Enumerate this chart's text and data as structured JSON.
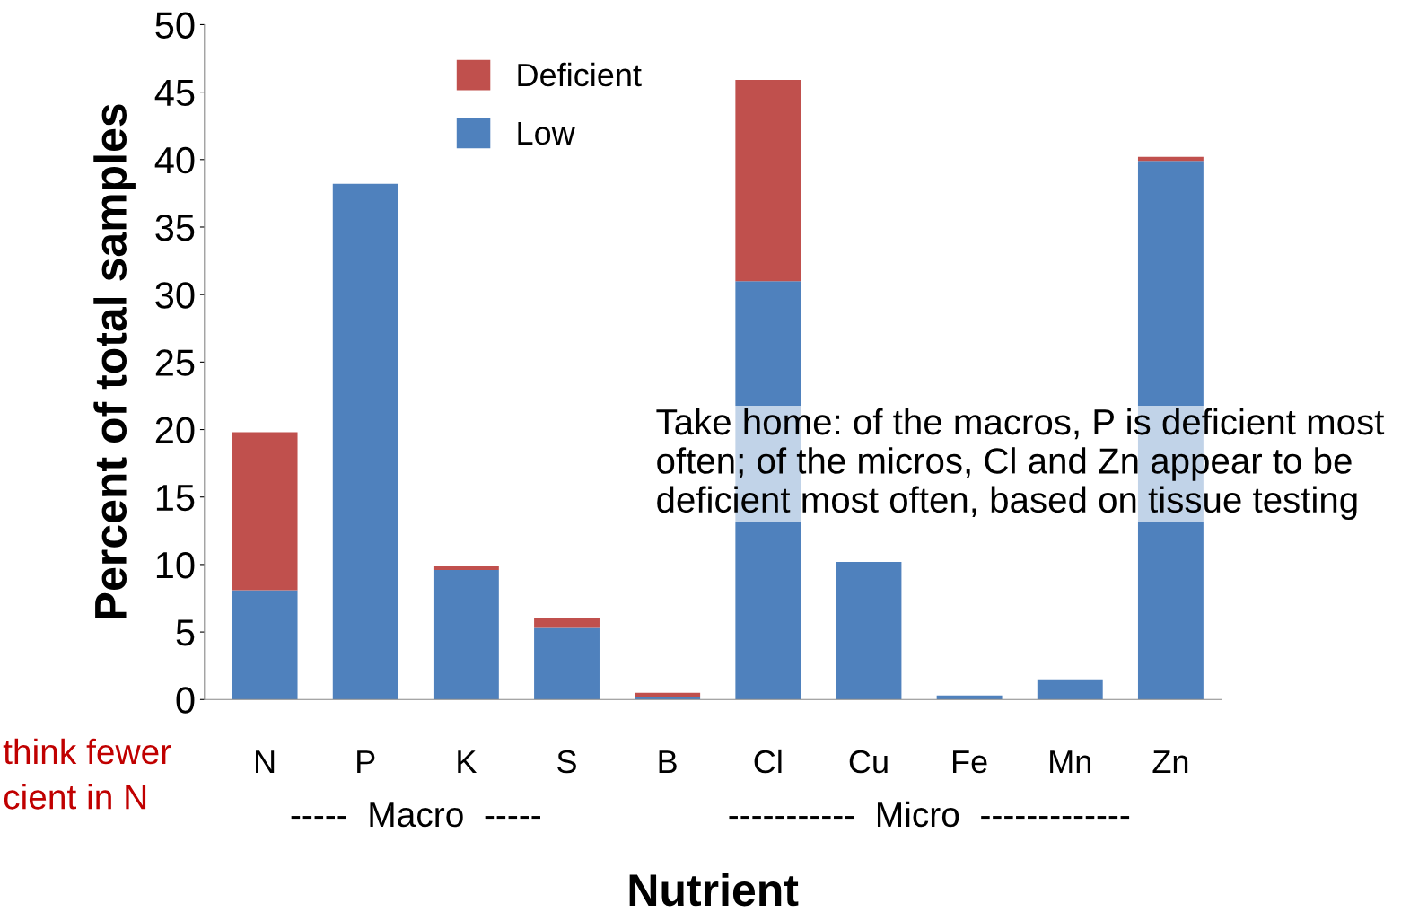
{
  "chart_data": {
    "type": "bar",
    "stacked": true,
    "xlabel": "Nutrient",
    "ylabel": "Percent of total samples",
    "categories": [
      "N",
      "P",
      "K",
      "S",
      "B",
      "Cl",
      "Cu",
      "Fe",
      "Mn",
      "Zn"
    ],
    "series": [
      {
        "name": "Low",
        "color": "#4f81bd",
        "values": [
          8.1,
          38.2,
          9.6,
          5.3,
          0.2,
          31.0,
          10.2,
          0.3,
          1.5,
          39.9
        ]
      },
      {
        "name": "Deficient",
        "color": "#c0504d",
        "values": [
          11.7,
          0,
          0.3,
          0.7,
          0.3,
          14.9,
          0,
          0,
          0,
          0.3
        ]
      }
    ],
    "ylim": [
      0,
      50
    ],
    "yticks": [
      0,
      5,
      10,
      15,
      20,
      25,
      30,
      35,
      40,
      45,
      50
    ],
    "grid": false,
    "legend": "top left",
    "annotations": [
      "Take home: of the macros, P is deficient most often; of the micros, Cl and Zn appear to be deficient most often, based on tissue testing",
      "think fewer\ncient in N",
      "-----  Macro  -----",
      "-----------  Micro  -------------"
    ]
  }
}
